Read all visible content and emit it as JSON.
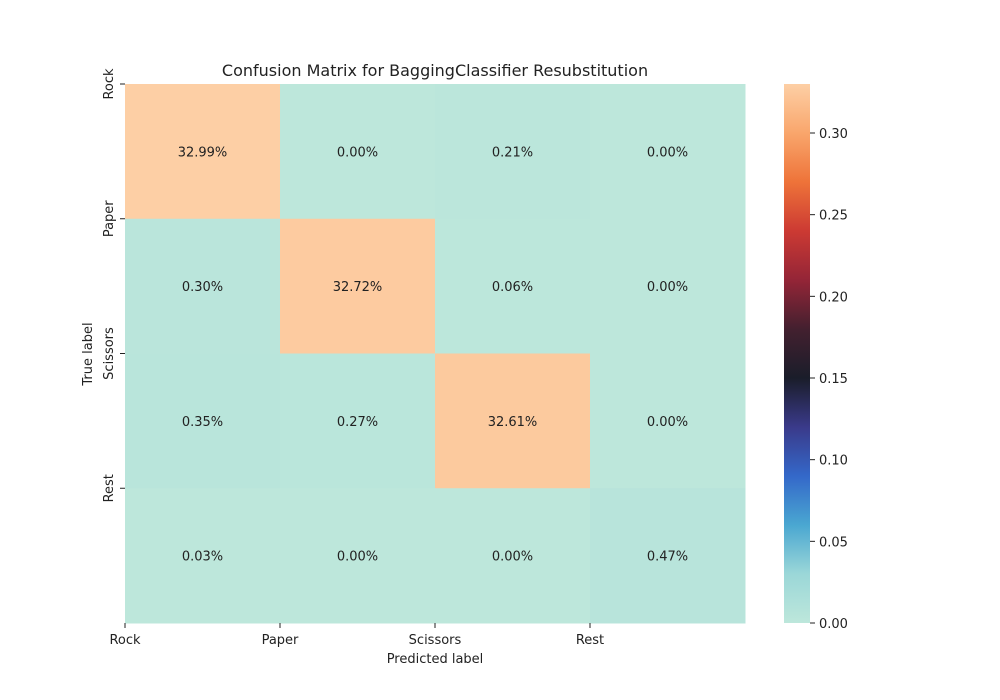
{
  "chart_data": {
    "type": "heatmap",
    "title": "Confusion Matrix for BaggingClassifier Resubstitution",
    "xlabel": "Predicted label",
    "ylabel": "True label",
    "x_categories": [
      "Rock",
      "Paper",
      "Scissors",
      "Rest"
    ],
    "y_categories": [
      "Rock",
      "Paper",
      "Scissors",
      "Rest"
    ],
    "values": [
      [
        0.3299,
        0.0,
        0.0021,
        0.0
      ],
      [
        0.003,
        0.3272,
        0.0006,
        0.0
      ],
      [
        0.0035,
        0.0027,
        0.3261,
        0.0
      ],
      [
        0.0003,
        0.0,
        0.0,
        0.0047
      ]
    ],
    "cell_labels": [
      [
        "32.99%",
        "0.00%",
        "0.21%",
        "0.00%"
      ],
      [
        "0.30%",
        "32.72%",
        "0.06%",
        "0.00%"
      ],
      [
        "0.35%",
        "0.27%",
        "32.61%",
        "0.00%"
      ],
      [
        "0.03%",
        "0.00%",
        "0.00%",
        "0.47%"
      ]
    ],
    "colorbar": {
      "vmin": 0.0,
      "vmax": 0.33,
      "ticks": [
        "0.00",
        "0.05",
        "0.10",
        "0.15",
        "0.20",
        "0.25",
        "0.30"
      ],
      "colormap": "icefire",
      "stops": [
        "#bde7db",
        "#9bd7d8",
        "#4aa7d1",
        "#3468c9",
        "#3a3a8a",
        "#1a1d2a",
        "#43202f",
        "#942537",
        "#cc3a33",
        "#ee7339",
        "#f9a66c",
        "#fdcfa5"
      ]
    },
    "grid": false,
    "legend": "colorbar-right"
  }
}
